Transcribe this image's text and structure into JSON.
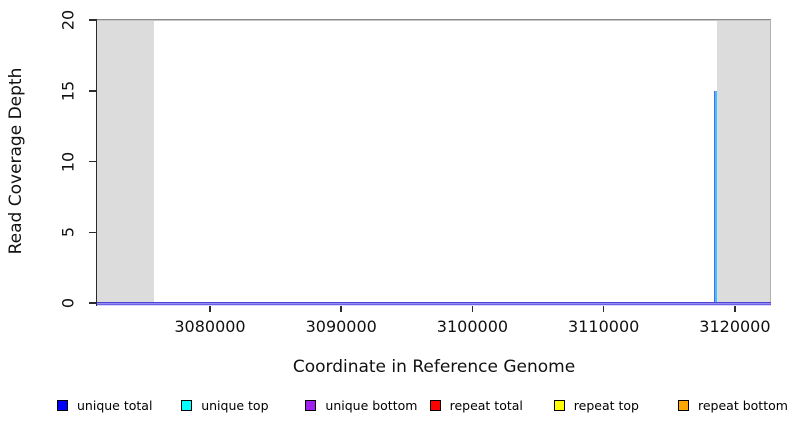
{
  "figure": {
    "background": "#ffffff"
  },
  "chart_data": {
    "type": "line",
    "title": "",
    "xlabel": "Coordinate in Reference Genome",
    "ylabel": "Read Coverage Depth",
    "xlim": [
      3071390,
      3122750
    ],
    "ylim": [
      0,
      20
    ],
    "x_ticks": [
      3080000,
      3090000,
      3100000,
      3110000,
      3120000
    ],
    "y_ticks": [
      0,
      5,
      10,
      15,
      20
    ],
    "grid": false,
    "legend_position": "bottom",
    "max_depth_line": {
      "y": 20,
      "color": "#8f8f8f"
    },
    "shaded_regions": [
      {
        "x_start": 3071390,
        "x_end": 3075700,
        "color": "#dcdcdc"
      },
      {
        "x_start": 3118650,
        "x_end": 3122750,
        "color": "#dcdcdc"
      }
    ],
    "series": [
      {
        "name": "unique total",
        "color": "#0000ff",
        "baseline_y": 0,
        "peaks": [
          {
            "x": 3118500,
            "y": 15
          }
        ]
      },
      {
        "name": "unique top",
        "color": "#00ffff",
        "baseline_y": 0,
        "peaks": [
          {
            "x": 3118500,
            "y": 15
          }
        ]
      },
      {
        "name": "unique bottom",
        "color": "#a020f0",
        "baseline_y": 0,
        "peaks": []
      },
      {
        "name": "repeat total",
        "color": "#ff0000",
        "baseline_y": 0,
        "peaks": []
      },
      {
        "name": "repeat top",
        "color": "#ffff00",
        "baseline_y": 0,
        "peaks": []
      },
      {
        "name": "repeat bottom",
        "color": "#ffa500",
        "baseline_y": 0,
        "peaks": []
      }
    ]
  },
  "legend": {
    "items": [
      {
        "label": "unique total",
        "color": "#0000ff"
      },
      {
        "label": "unique top",
        "color": "#00ffff"
      },
      {
        "label": "unique bottom",
        "color": "#a020f0"
      },
      {
        "label": "repeat total",
        "color": "#ff0000"
      },
      {
        "label": "repeat top",
        "color": "#ffff00"
      },
      {
        "label": "repeat bottom",
        "color": "#ffa500"
      }
    ]
  }
}
